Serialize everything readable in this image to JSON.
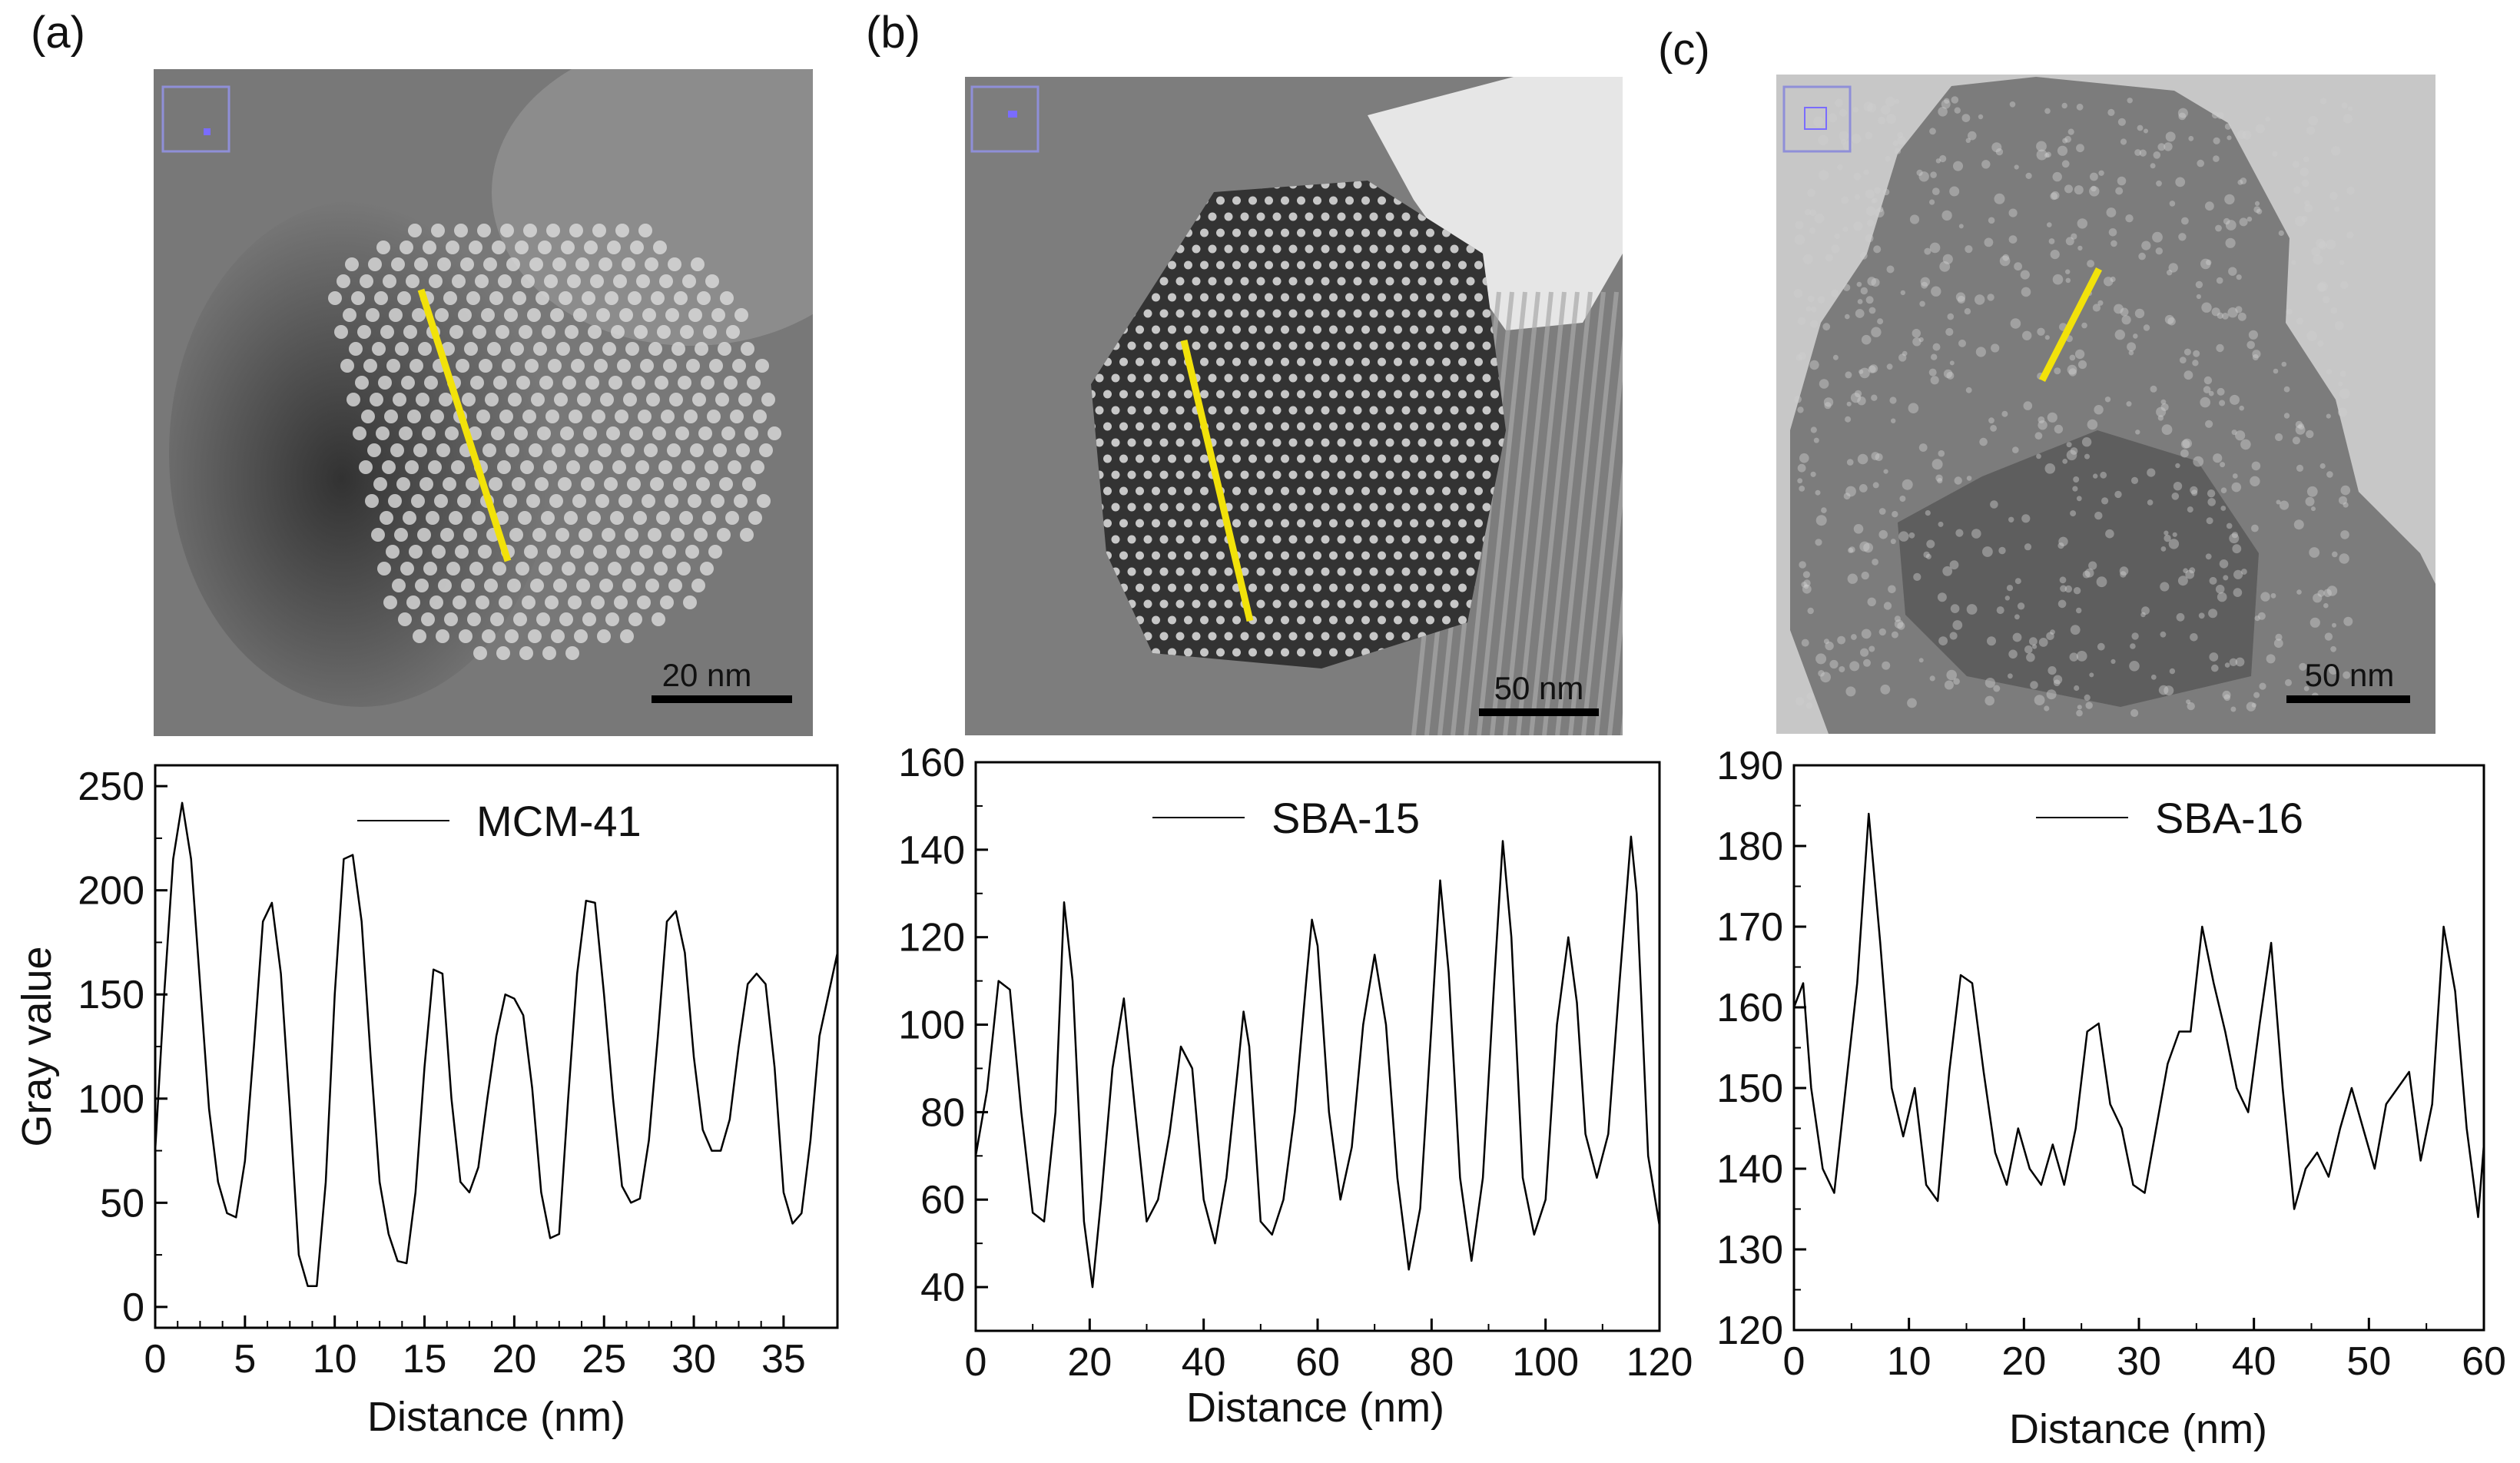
{
  "panels": [
    {
      "label": "(a)",
      "micrograph": {
        "scale_bar": "20 nm",
        "background": "#6f6f6f",
        "dot_color": "#dcdcdc",
        "profile_line_color": "#f2e20a"
      },
      "chart_data": {
        "type": "line",
        "title": "",
        "xlabel": "Distance (nm)",
        "ylabel": "Gray value",
        "xlim": [
          0,
          38
        ],
        "ylim": [
          -10,
          260
        ],
        "xticks": [
          0,
          5,
          10,
          15,
          20,
          25,
          30,
          35
        ],
        "yticks": [
          0,
          50,
          100,
          150,
          200,
          250
        ],
        "series": [
          {
            "name": "MCM-41",
            "x": [
              0,
              0.5,
              1.0,
              1.5,
              2.0,
              2.5,
              3.0,
              3.5,
              4.0,
              4.5,
              5.0,
              5.5,
              6.0,
              6.5,
              7.0,
              7.5,
              8.0,
              8.5,
              9.0,
              9.5,
              10.0,
              10.5,
              11.0,
              11.5,
              12.0,
              12.5,
              13.0,
              13.5,
              14.0,
              14.5,
              15.0,
              15.5,
              16.0,
              16.5,
              17.0,
              17.5,
              18.0,
              18.5,
              19.0,
              19.5,
              20.0,
              20.5,
              21.0,
              21.5,
              22.0,
              22.5,
              23.0,
              23.5,
              24.0,
              24.5,
              25.0,
              25.5,
              26.0,
              26.5,
              27.0,
              27.5,
              28.0,
              28.5,
              29.0,
              29.5,
              30.0,
              30.5,
              31.0,
              31.5,
              32.0,
              32.5,
              33.0,
              33.5,
              34.0,
              34.5,
              35.0,
              35.5,
              36.0,
              36.5,
              37.0,
              37.5,
              38.0
            ],
            "y": [
              75,
              150,
              215,
              242,
              215,
              155,
              95,
              60,
              45,
              43,
              70,
              125,
              185,
              194,
              160,
              95,
              25,
              10,
              10,
              60,
              150,
              215,
              217,
              185,
              120,
              60,
              35,
              22,
              21,
              55,
              115,
              162,
              160,
              100,
              60,
              55,
              67,
              100,
              130,
              150,
              148,
              140,
              105,
              55,
              33,
              35,
              100,
              160,
              195,
              194,
              150,
              100,
              58,
              50,
              52,
              80,
              130,
              185,
              190,
              170,
              120,
              85,
              75,
              75,
              90,
              125,
              155,
              160,
              155,
              115,
              55,
              40,
              45,
              80,
              130,
              150,
              170
            ]
          }
        ]
      }
    },
    {
      "label": "(b)",
      "micrograph": {
        "scale_bar": "50 nm",
        "background": "#7a7a7a",
        "dot_color": "#e2e2e2",
        "profile_line_color": "#f2e20a"
      },
      "chart_data": {
        "type": "line",
        "title": "",
        "xlabel": "Distance (nm)",
        "ylabel": "",
        "xlim": [
          0,
          120
        ],
        "ylim": [
          30,
          160
        ],
        "xticks": [
          0,
          20,
          40,
          60,
          80,
          100,
          120
        ],
        "yticks": [
          40,
          60,
          80,
          100,
          120,
          140,
          160
        ],
        "series": [
          {
            "name": "SBA-15",
            "x": [
              0,
              2,
              4,
              6,
              8,
              10,
              12,
              14,
              15.5,
              17,
              19,
              20.5,
              22,
              24,
              26,
              28,
              30,
              32,
              34,
              36,
              38,
              40,
              42,
              44,
              46,
              47,
              48,
              50,
              52,
              54,
              56,
              58,
              59,
              60,
              62,
              64,
              66,
              68,
              70,
              72,
              74,
              76,
              78,
              80,
              81.5,
              83,
              85,
              87,
              89,
              91,
              92.5,
              94,
              96,
              98,
              100,
              102,
              104,
              105.5,
              107,
              109,
              111,
              113,
              115,
              116,
              118,
              120
            ],
            "y": [
              70,
              85,
              110,
              108,
              80,
              57,
              55,
              80,
              128,
              110,
              55,
              40,
              60,
              90,
              106,
              80,
              55,
              60,
              75,
              95,
              90,
              60,
              50,
              65,
              90,
              103,
              95,
              55,
              52,
              60,
              80,
              110,
              124,
              118,
              80,
              60,
              72,
              100,
              116,
              100,
              65,
              44,
              58,
              100,
              133,
              112,
              65,
              46,
              65,
              110,
              142,
              120,
              65,
              52,
              60,
              100,
              120,
              105,
              75,
              65,
              75,
              110,
              143,
              130,
              70,
              54
            ]
          }
        ]
      }
    },
    {
      "label": "(c)",
      "micrograph": {
        "scale_bar": "50 nm",
        "background": "#9a9a9a",
        "dot_color": "#cfcfcf",
        "profile_line_color": "#f2e20a"
      },
      "chart_data": {
        "type": "line",
        "title": "",
        "xlabel": "Distance (nm)",
        "ylabel": "",
        "xlim": [
          0,
          60
        ],
        "ylim": [
          120,
          190
        ],
        "xticks": [
          0,
          10,
          20,
          30,
          40,
          50,
          60
        ],
        "yticks": [
          120,
          130,
          140,
          150,
          160,
          170,
          180,
          190
        ],
        "series": [
          {
            "name": "SBA-16",
            "x": [
              0,
              0.8,
              1.5,
              2.5,
              3.5,
              4.5,
              5.5,
              6.5,
              7.5,
              8.5,
              9.5,
              10.5,
              11.5,
              12.5,
              13.5,
              14.5,
              15.5,
              16.5,
              17.5,
              18.5,
              19.5,
              20.5,
              21.5,
              22.5,
              23.5,
              24.5,
              25.5,
              26.5,
              27.5,
              28.5,
              29.5,
              30.5,
              31.5,
              32.5,
              33.5,
              34.5,
              35.5,
              36.5,
              37.5,
              38.5,
              39.5,
              40.5,
              41.5,
              42.5,
              43.5,
              44.5,
              45.5,
              46.5,
              47.5,
              48.5,
              49.5,
              50.5,
              51.5,
              52.5,
              53.5,
              54.5,
              55.5,
              56.5,
              57.5,
              58.5,
              59.5,
              60
            ],
            "y": [
              160,
              163,
              150,
              140,
              137,
              150,
              163,
              184,
              168,
              150,
              144,
              150,
              138,
              136,
              152,
              164,
              163,
              152,
              142,
              138,
              145,
              140,
              138,
              143,
              138,
              145,
              157,
              158,
              148,
              145,
              138,
              137,
              145,
              153,
              157,
              157,
              170,
              163,
              157,
              150,
              147,
              158,
              168,
              150,
              135,
              140,
              142,
              139,
              145,
              150,
              145,
              140,
              148,
              150,
              152,
              141,
              148,
              170,
              162,
              145,
              134,
              143
            ]
          }
        ]
      }
    }
  ]
}
